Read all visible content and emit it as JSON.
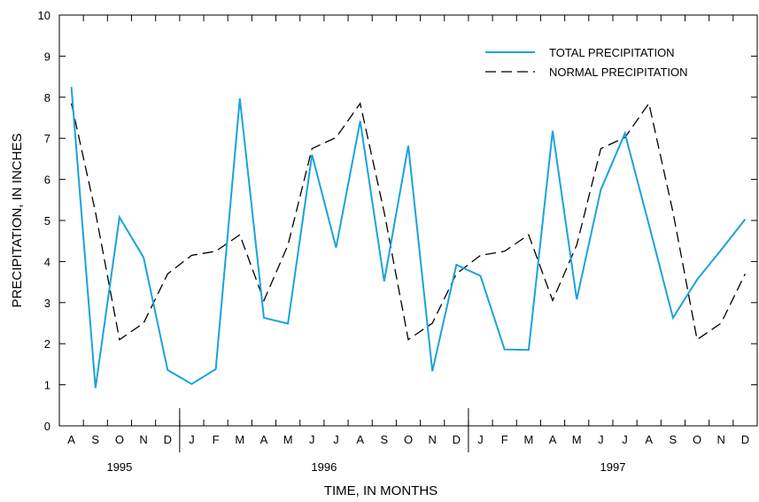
{
  "chart_data": {
    "type": "line",
    "xlabel": "TIME, IN MONTHS",
    "ylabel": "PRECIPITATION, IN INCHES",
    "ylim": [
      0,
      10
    ],
    "yticks": [
      0,
      1,
      2,
      3,
      4,
      5,
      6,
      7,
      8,
      9,
      10
    ],
    "grid": false,
    "legend_position": "top-right",
    "months": [
      "A",
      "S",
      "O",
      "N",
      "D",
      "J",
      "F",
      "M",
      "A",
      "M",
      "J",
      "J",
      "A",
      "S",
      "O",
      "N",
      "D",
      "J",
      "F",
      "M",
      "A",
      "M",
      "J",
      "J",
      "A",
      "S",
      "O",
      "N",
      "D"
    ],
    "years": [
      {
        "label": "1995",
        "start": 0,
        "end": 4
      },
      {
        "label": "1996",
        "start": 5,
        "end": 16
      },
      {
        "label": "1997",
        "start": 17,
        "end": 28
      }
    ],
    "series": [
      {
        "name": "TOTAL PRECIPITATION",
        "color": "#1aa3dc",
        "dash": "solid",
        "values": [
          8.25,
          0.92,
          5.08,
          4.1,
          1.36,
          1.02,
          1.38,
          7.97,
          2.63,
          2.49,
          6.6,
          4.34,
          7.42,
          3.52,
          6.82,
          1.33,
          3.92,
          3.65,
          1.86,
          1.85,
          7.18,
          3.08,
          5.75,
          7.12,
          4.9,
          2.63,
          3.56,
          4.28,
          5.03
        ]
      },
      {
        "name": "NORMAL PRECIPITATION",
        "color": "#000000",
        "dash": "dashed",
        "values": [
          7.85,
          5.2,
          2.1,
          2.5,
          3.7,
          4.15,
          4.25,
          4.65,
          3.05,
          4.4,
          6.75,
          7.02,
          7.85,
          5.2,
          2.1,
          2.5,
          3.7,
          4.15,
          4.25,
          4.65,
          3.05,
          4.4,
          6.75,
          7.02,
          7.85,
          5.2,
          2.1,
          2.5,
          3.7
        ]
      }
    ]
  }
}
